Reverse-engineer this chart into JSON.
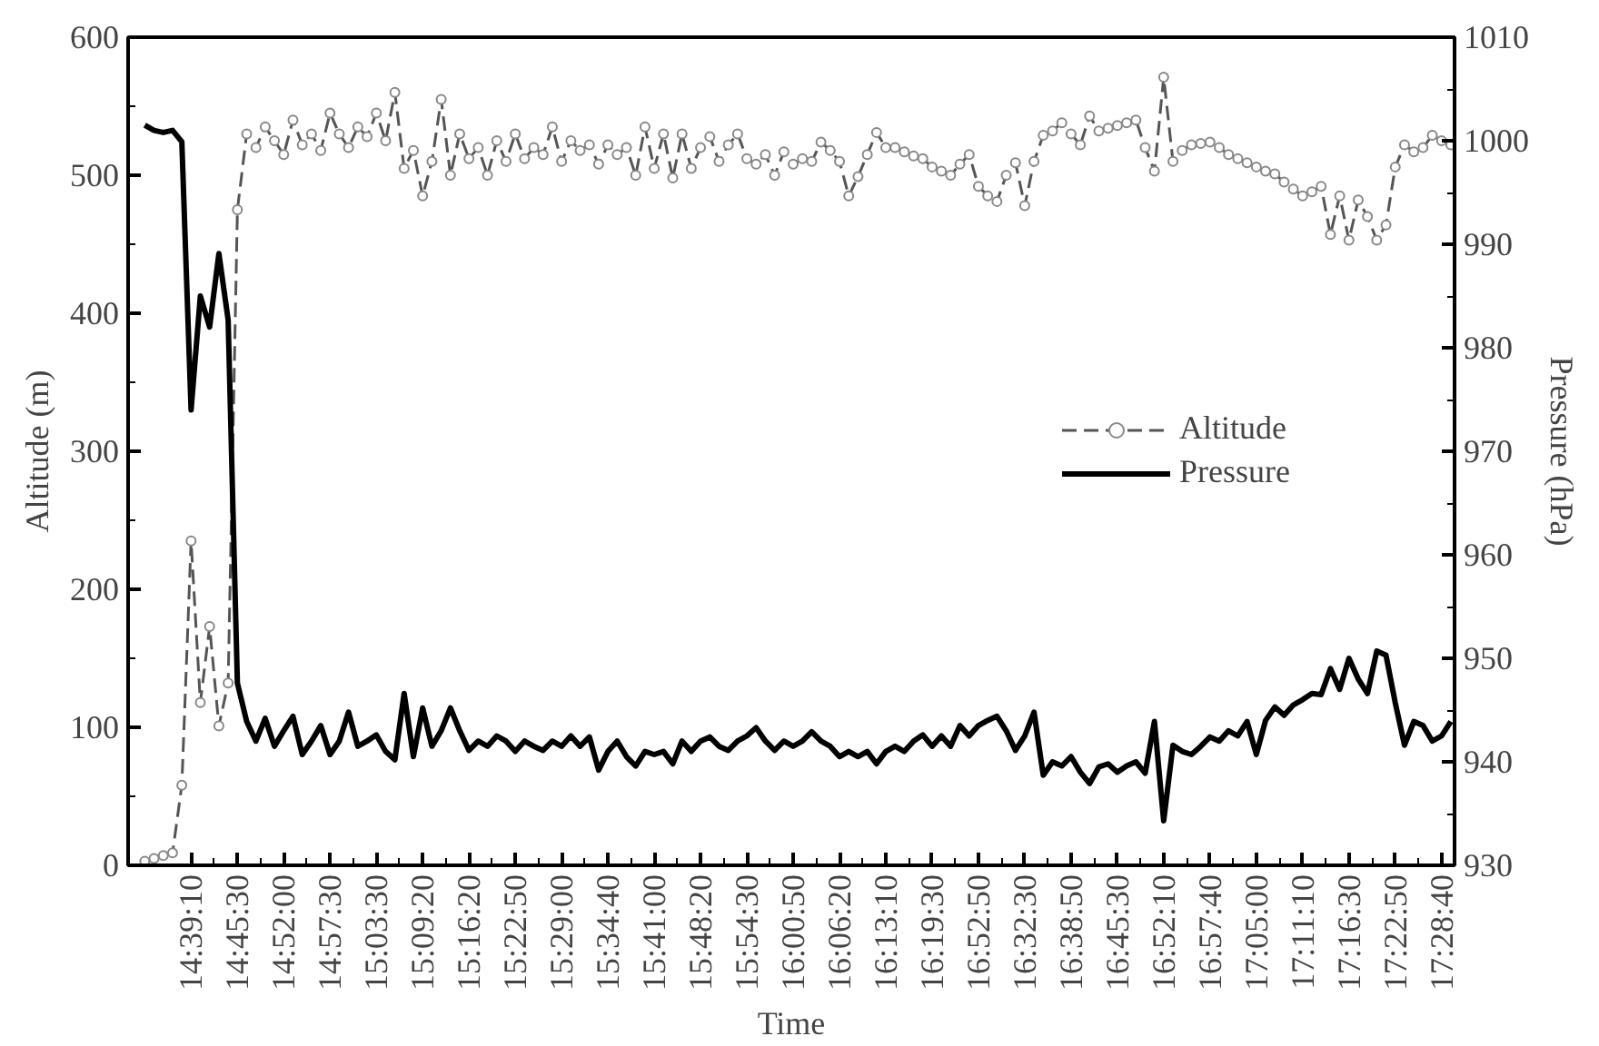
{
  "chart_data": {
    "type": "line",
    "xlabel": "Time",
    "ylabel": "Altitude (m)",
    "y2label": "Pressure (hPa)",
    "categories": [
      null,
      null,
      null,
      null,
      null,
      "14:39:10",
      null,
      null,
      null,
      null,
      "14:45:30",
      null,
      null,
      null,
      null,
      "14:52:00",
      null,
      null,
      null,
      null,
      "14:57:30",
      null,
      null,
      null,
      null,
      "15:03:30",
      null,
      null,
      null,
      null,
      "15:09:20",
      null,
      null,
      null,
      null,
      "15:16:20",
      null,
      null,
      null,
      null,
      "15:22:50",
      null,
      null,
      null,
      null,
      "15:29:00",
      null,
      null,
      null,
      null,
      "15:34:40",
      null,
      null,
      null,
      null,
      "15:41:00",
      null,
      null,
      null,
      null,
      "15:48:20",
      null,
      null,
      null,
      null,
      "15:54:30",
      null,
      null,
      null,
      null,
      "16:00:50",
      null,
      null,
      null,
      null,
      "16:06:20",
      null,
      null,
      null,
      null,
      "16:13:10",
      null,
      null,
      null,
      null,
      "16:19:30",
      null,
      null,
      null,
      null,
      "16:52:50",
      null,
      null,
      null,
      null,
      "16:32:30",
      null,
      null,
      null,
      null,
      "16:38:50",
      null,
      null,
      null,
      null,
      "16:45:30",
      null,
      null,
      null,
      null,
      "16:52:10",
      null,
      null,
      null,
      null,
      "16:57:40",
      null,
      null,
      null,
      null,
      "17:05:00",
      null,
      null,
      null,
      null,
      "17:11:10",
      null,
      null,
      null,
      null,
      "17:16:30",
      null,
      null,
      null,
      null,
      "17:22:50",
      null,
      null,
      null,
      null,
      "17:28:40",
      null
    ],
    "ylim": [
      0,
      600
    ],
    "yticks": [
      0,
      100,
      200,
      300,
      400,
      500,
      600
    ],
    "y2lim": [
      930,
      1010
    ],
    "y2ticks": [
      930,
      940,
      950,
      960,
      970,
      980,
      990,
      1000,
      1010
    ],
    "grid": false,
    "legend": "right",
    "series": [
      {
        "name": "Altitude",
        "color": "#555555",
        "marker": "circle",
        "line_style": "dashed",
        "values": [
          3,
          5,
          7,
          9,
          58,
          235,
          118,
          173,
          101,
          132,
          475,
          530,
          520,
          535,
          525,
          515,
          540,
          522,
          530,
          518,
          545,
          530,
          520,
          535,
          528,
          545,
          525,
          560,
          505,
          518,
          485,
          510,
          555,
          500,
          530,
          512,
          520,
          500,
          525,
          510,
          530,
          512,
          520,
          515,
          535,
          510,
          525,
          518,
          522,
          508,
          522,
          515,
          520,
          500,
          535,
          505,
          530,
          498,
          530,
          505,
          520,
          528,
          510,
          522,
          530,
          512,
          508,
          515,
          500,
          517,
          508,
          512,
          510,
          524,
          518,
          510,
          485,
          499,
          515,
          531,
          520,
          520,
          517,
          514,
          512,
          506,
          503,
          500,
          508,
          515,
          492,
          485,
          481,
          500,
          509,
          478,
          510,
          529,
          532,
          538,
          530,
          522,
          543,
          532,
          534,
          536,
          538,
          540,
          520,
          503,
          571,
          510,
          518,
          522,
          523,
          524,
          520,
          515,
          512,
          509,
          506,
          503,
          501,
          495,
          490,
          485,
          488,
          492,
          457,
          485,
          453,
          482,
          470,
          453,
          464,
          506,
          522,
          517,
          520,
          529,
          525,
          522
        ]
      },
      {
        "name": "Pressure",
        "color": "#000000",
        "marker": "none",
        "line_style": "solid",
        "axis": "y2",
        "values": [
          1001.5,
          1001.0,
          1000.8,
          1001.0,
          999.9,
          974.0,
          985,
          982,
          989.1,
          982.7,
          947.6,
          943.9,
          942.0,
          944.2,
          941.5,
          943,
          944.4,
          940.7,
          942,
          943.5,
          940.7,
          942,
          944.8,
          941.5,
          942,
          942.6,
          941,
          940.2,
          946.6,
          940.5,
          945.2,
          941.5,
          943,
          945.2,
          943,
          941.1,
          942,
          941.5,
          942.5,
          942.0,
          941,
          942,
          941.5,
          941.1,
          942,
          941.5,
          942.5,
          941.5,
          942.4,
          939.2,
          941,
          942.0,
          940.5,
          939.6,
          941,
          940.7,
          941,
          939.8,
          942.0,
          941,
          942,
          942.4,
          941.5,
          941.1,
          942,
          942.5,
          943.3,
          942,
          941.1,
          942,
          941.5,
          942,
          942.9,
          942,
          941.5,
          940.5,
          941,
          940.5,
          941,
          939.8,
          941,
          941.5,
          941,
          942,
          942.6,
          941.5,
          942.5,
          941.5,
          943.5,
          942.5,
          943.5,
          944,
          944.4,
          943,
          941.1,
          942.5,
          944.8,
          938.7,
          940,
          939.6,
          940.5,
          939,
          937.9,
          939.5,
          939.8,
          939,
          939.6,
          940,
          938.9,
          943.9,
          934.3,
          941.6,
          941,
          940.7,
          941.5,
          942.4,
          942,
          943,
          942.5,
          943.9,
          940.7,
          944,
          945.3,
          944.5,
          945.5,
          946,
          946.6,
          946.5,
          949.0,
          947,
          950.0,
          948,
          946.6,
          950.7,
          950.3,
          945.7,
          941.6,
          943.9,
          943.5,
          942,
          942.5,
          943.9
        ]
      }
    ]
  }
}
